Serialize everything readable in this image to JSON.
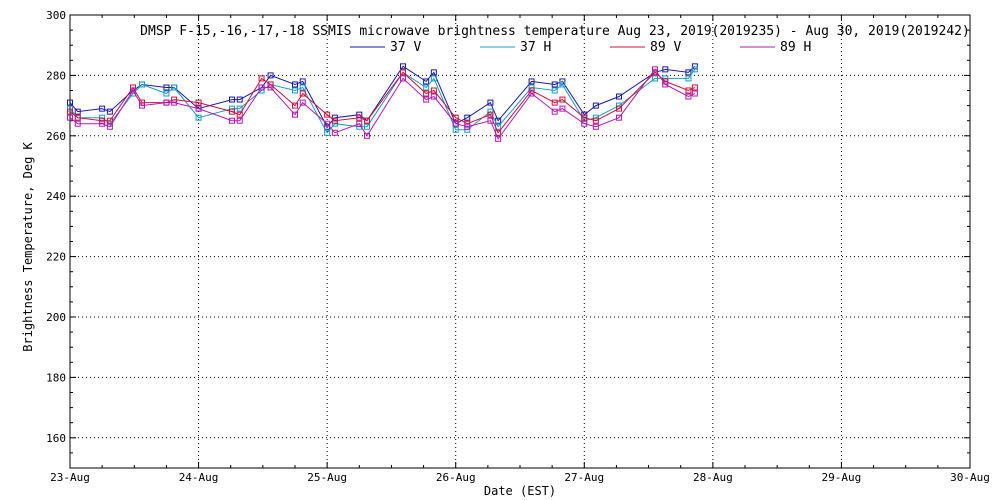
{
  "chart_data": {
    "type": "line",
    "title": "DMSP F-15,-16,-17,-18 SSMIS microwave brightness temperature Aug 23, 2019(2019235) - Aug 30, 2019(2019242)",
    "xlabel": "Date (EST)",
    "ylabel": "Brightness Temperature, Deg K",
    "xlim": [
      0,
      7
    ],
    "ylim": [
      150,
      300
    ],
    "grid": true,
    "legend_position": "top-center",
    "x_tick_labels": [
      "23-Aug",
      "24-Aug",
      "25-Aug",
      "26-Aug",
      "27-Aug",
      "28-Aug",
      "29-Aug",
      "30-Aug"
    ],
    "x_tick_values": [
      0,
      1,
      2,
      3,
      4,
      5,
      6,
      7
    ],
    "y_tick_values": [
      160,
      180,
      200,
      220,
      240,
      260,
      280,
      300
    ],
    "x_unit": "days since Aug 23, 2019 00:00",
    "series": [
      {
        "name": "37 V",
        "color": "#1a1aa6",
        "x": [
          0.0,
          0.06,
          0.25,
          0.31,
          0.49,
          0.56,
          0.75,
          0.81,
          1.0,
          1.26,
          1.32,
          1.49,
          1.56,
          1.75,
          1.81,
          2.0,
          2.06,
          2.25,
          2.31,
          2.59,
          2.77,
          2.83,
          3.0,
          3.09,
          3.27,
          3.33,
          3.59,
          3.77,
          3.83,
          4.0,
          4.09,
          4.27,
          4.55,
          4.63,
          4.81,
          4.86
        ],
        "values": [
          271,
          268,
          269,
          268,
          275,
          277,
          276,
          276,
          269,
          272,
          272,
          276,
          280,
          277,
          278,
          263,
          266,
          267,
          265,
          283,
          278,
          281,
          264,
          266,
          271,
          265,
          278,
          277,
          278,
          267,
          270,
          273,
          281,
          282,
          281,
          283
        ]
      },
      {
        "name": "37 H",
        "color": "#1a9ac8",
        "x": [
          0.0,
          0.06,
          0.25,
          0.31,
          0.49,
          0.56,
          0.75,
          0.81,
          1.0,
          1.26,
          1.32,
          1.49,
          1.56,
          1.75,
          1.81,
          2.0,
          2.06,
          2.25,
          2.31,
          2.59,
          2.77,
          2.83,
          3.0,
          3.09,
          3.27,
          3.33,
          3.59,
          3.77,
          3.83,
          4.0,
          4.09,
          4.27,
          4.55,
          4.63,
          4.81,
          4.86
        ],
        "values": [
          269,
          266,
          266,
          264,
          274,
          277,
          274,
          276,
          266,
          269,
          269,
          275,
          277,
          275,
          276,
          261,
          264,
          263,
          263,
          281,
          276,
          279,
          262,
          262,
          268,
          263,
          276,
          275,
          277,
          265,
          266,
          270,
          279,
          279,
          279,
          282
        ]
      },
      {
        "name": "89 V",
        "color": "#d0103a",
        "x": [
          0.0,
          0.06,
          0.25,
          0.31,
          0.49,
          0.56,
          0.75,
          0.81,
          1.0,
          1.26,
          1.32,
          1.49,
          1.56,
          1.75,
          1.81,
          2.0,
          2.06,
          2.25,
          2.31,
          2.59,
          2.77,
          2.83,
          3.0,
          3.09,
          3.27,
          3.33,
          3.59,
          3.77,
          3.83,
          4.0,
          4.09,
          4.27,
          4.55,
          4.63,
          4.81,
          4.86
        ],
        "values": [
          268,
          266,
          265,
          265,
          276,
          271,
          271,
          272,
          271,
          268,
          267,
          279,
          277,
          270,
          274,
          267,
          265,
          266,
          265,
          281,
          274,
          275,
          266,
          264,
          267,
          261,
          275,
          271,
          272,
          266,
          265,
          269,
          281,
          278,
          275,
          276
        ]
      },
      {
        "name": "89 H",
        "color": "#b01ab4",
        "x": [
          0.0,
          0.06,
          0.25,
          0.31,
          0.49,
          0.56,
          0.75,
          0.81,
          1.0,
          1.26,
          1.32,
          1.49,
          1.56,
          1.75,
          1.81,
          2.0,
          2.06,
          2.25,
          2.31,
          2.59,
          2.77,
          2.83,
          3.0,
          3.09,
          3.27,
          3.33,
          3.59,
          3.77,
          3.83,
          4.0,
          4.09,
          4.27,
          4.55,
          4.63,
          4.81,
          4.86
        ],
        "values": [
          266,
          264,
          264,
          263,
          275,
          270,
          271,
          271,
          269,
          265,
          265,
          276,
          276,
          267,
          271,
          264,
          261,
          264,
          260,
          279,
          272,
          273,
          264,
          263,
          265,
          259,
          274,
          268,
          269,
          264,
          263,
          266,
          282,
          277,
          273,
          274
        ]
      }
    ]
  }
}
